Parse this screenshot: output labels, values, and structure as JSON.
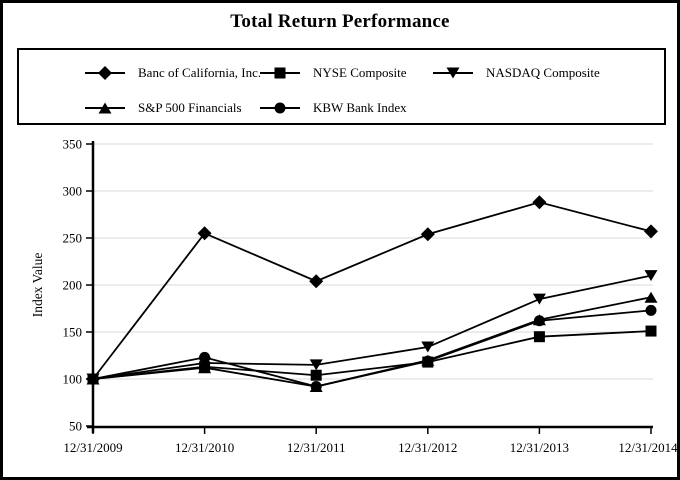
{
  "page": {
    "title": "Total Return Performance"
  },
  "chart_data": {
    "type": "line",
    "title": "Total Return Performance",
    "xlabel": "",
    "ylabel": "Index Value",
    "ylim": [
      50,
      350
    ],
    "ytick_step": 50,
    "yticks": [
      50,
      100,
      150,
      200,
      250,
      300,
      350
    ],
    "grid": true,
    "legend_position": "top-box",
    "x": [
      "12/31/2009",
      "12/31/2010",
      "12/31/2011",
      "12/31/2012",
      "12/31/2013",
      "12/31/2014"
    ],
    "series": [
      {
        "name": "Banc of California, Inc.",
        "marker": "diamond",
        "values": [
          100,
          255,
          204,
          254,
          288,
          257
        ]
      },
      {
        "name": "NYSE Composite",
        "marker": "square",
        "values": [
          100,
          113,
          104,
          118,
          145,
          151
        ]
      },
      {
        "name": "NASDAQ Composite",
        "marker": "triangle-down",
        "values": [
          100,
          117,
          115,
          134,
          185,
          210
        ]
      },
      {
        "name": "S&P 500 Financials",
        "marker": "triangle-up",
        "values": [
          100,
          112,
          92,
          120,
          163,
          187
        ]
      },
      {
        "name": "KBW Bank Index",
        "marker": "circle",
        "values": [
          100,
          123,
          92,
          119,
          162,
          173
        ]
      }
    ],
    "colors": {
      "series_line": "#000000",
      "marker_fill": "#000000",
      "grid_line": "#d9d9d9",
      "axis_line": "#000000",
      "text": "#000000",
      "background": "#ffffff"
    }
  }
}
